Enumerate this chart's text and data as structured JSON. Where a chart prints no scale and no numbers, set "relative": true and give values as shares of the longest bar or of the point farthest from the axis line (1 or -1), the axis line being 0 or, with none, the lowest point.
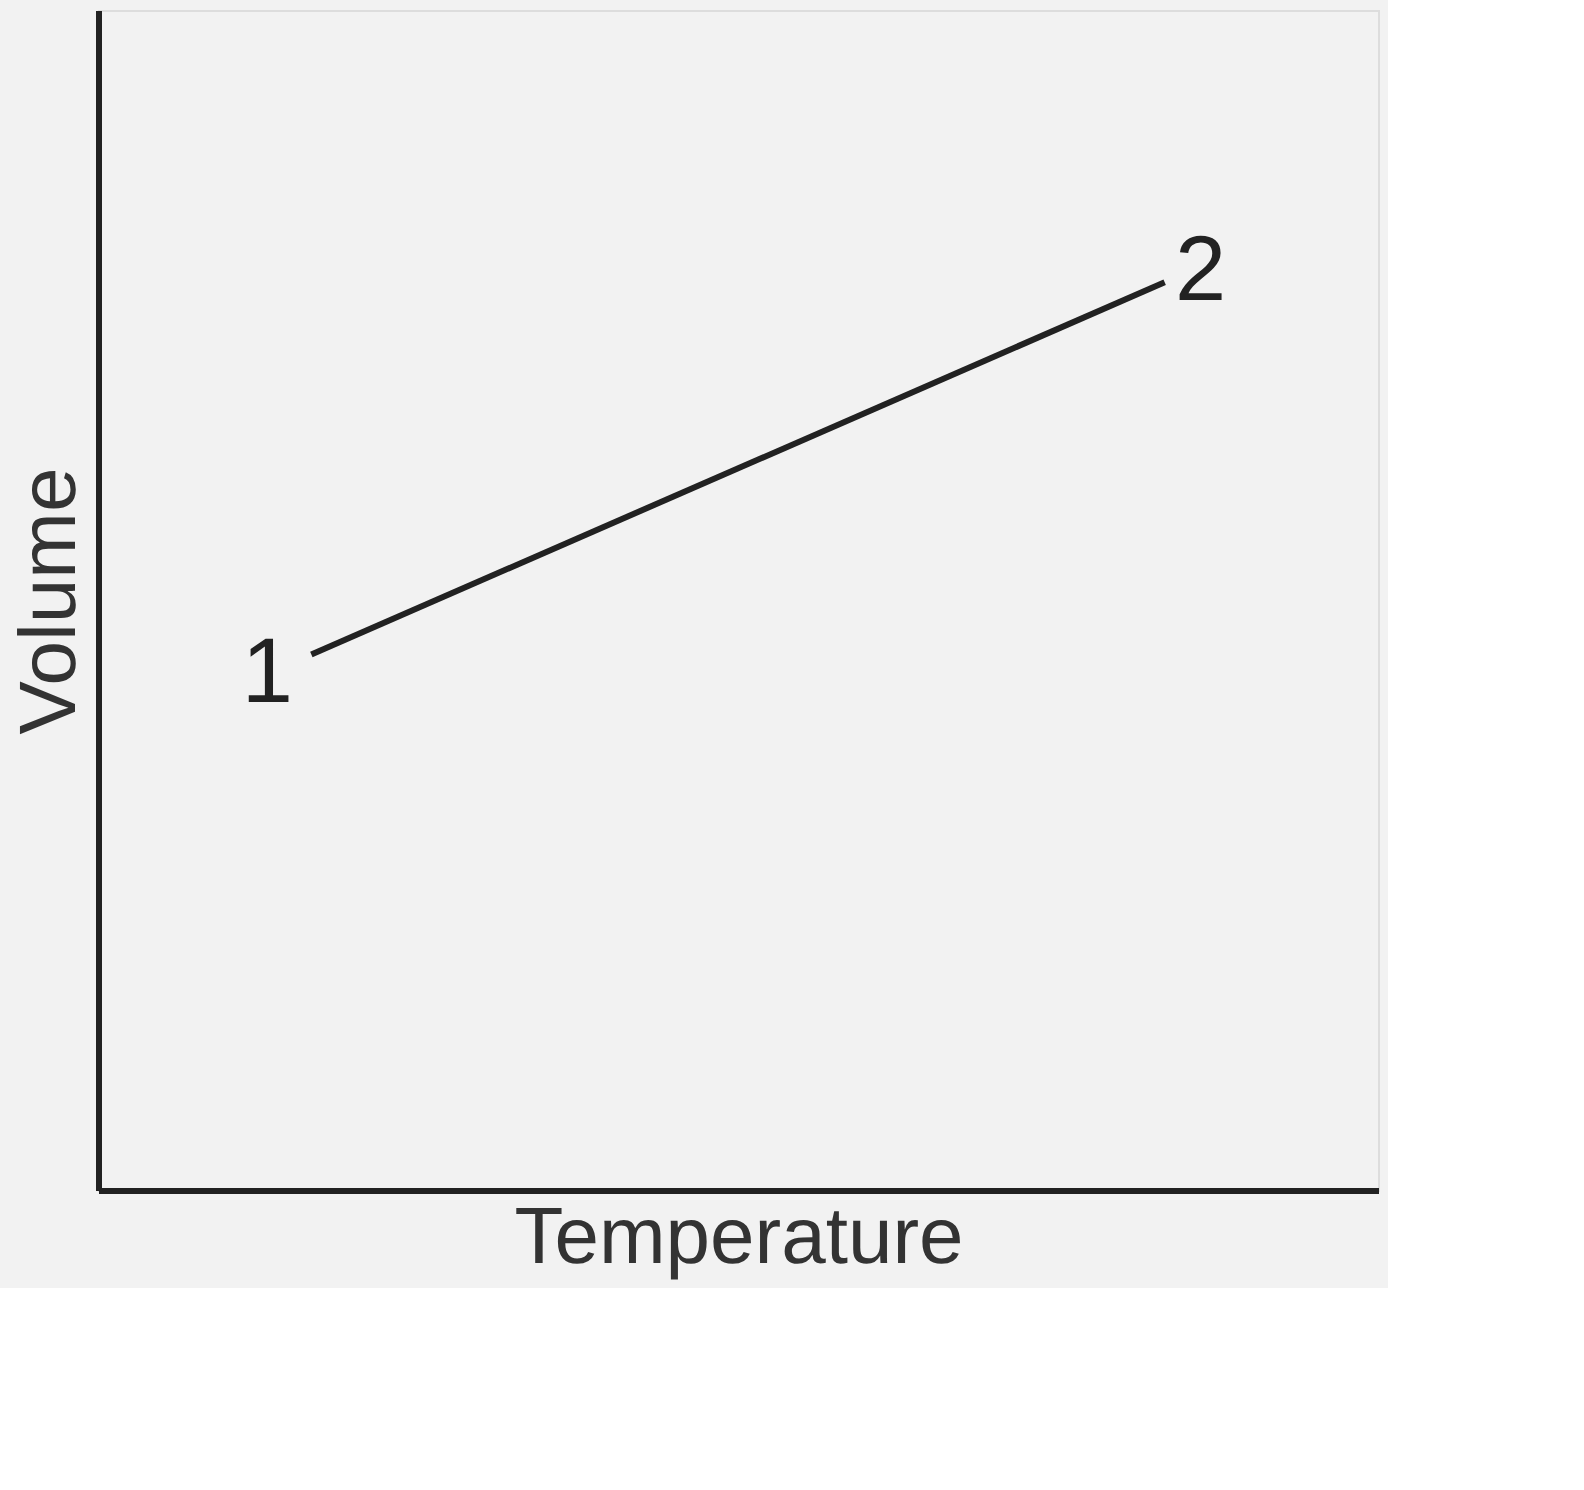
{
  "chart_data": {
    "type": "line",
    "relative": true,
    "xlabel": "Temperature",
    "ylabel": "Volume",
    "categories": [
      null,
      null
    ],
    "series": [
      {
        "color": "#222222",
        "values": [
          0.59,
          1
        ]
      }
    ],
    "annotations": [
      "1",
      "2"
    ],
    "marker": "none",
    "line_style": "solid"
  }
}
